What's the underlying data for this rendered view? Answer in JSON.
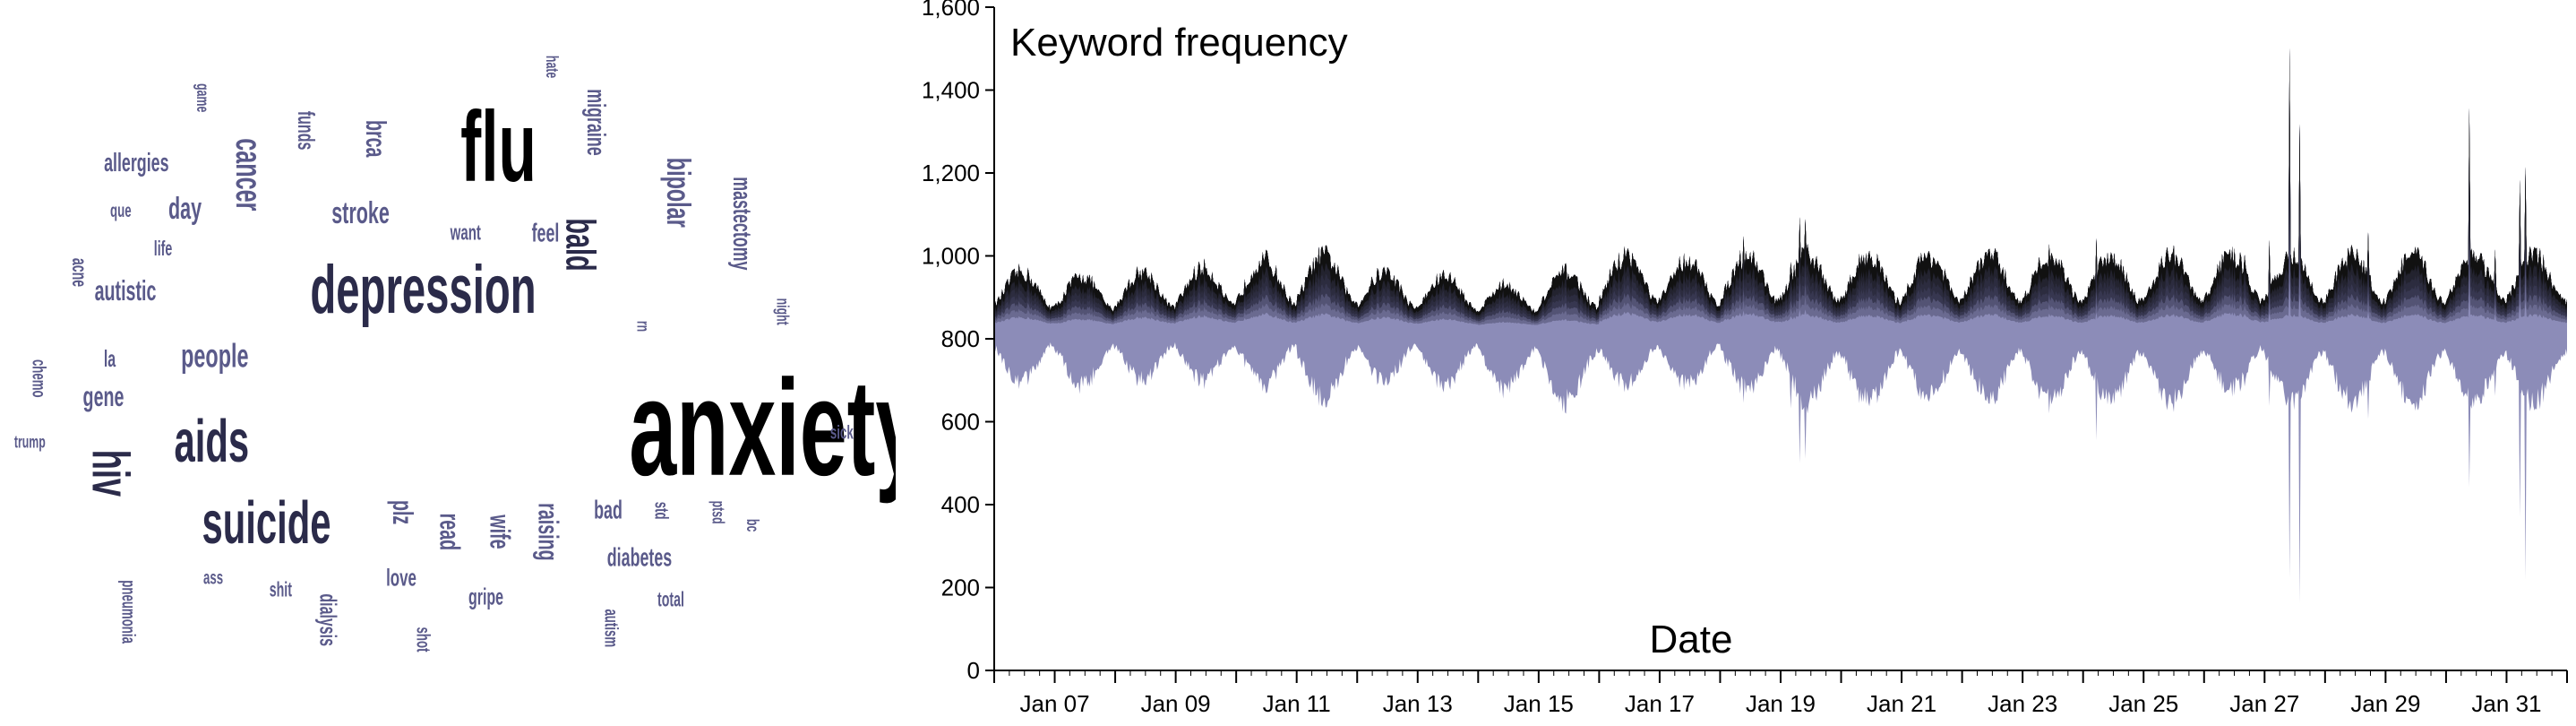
{
  "chart_data": [
    {
      "type": "wordcloud",
      "colors": {
        "dark": "#000000",
        "medium": "#2b2b4a",
        "light": "#5a5a8a"
      },
      "words": [
        {
          "text": "anxiety",
          "weight": 100,
          "rotate": 0,
          "shade": "dark"
        },
        {
          "text": "flu",
          "weight": 72,
          "rotate": 0,
          "shade": "dark"
        },
        {
          "text": "depression",
          "weight": 48,
          "rotate": 0,
          "shade": "medium"
        },
        {
          "text": "suicide",
          "weight": 42,
          "rotate": 0,
          "shade": "medium"
        },
        {
          "text": "aids",
          "weight": 42,
          "rotate": 0,
          "shade": "medium"
        },
        {
          "text": "hiv",
          "weight": 36,
          "rotate": 90,
          "shade": "medium"
        },
        {
          "text": "bald",
          "weight": 28,
          "rotate": 90,
          "shade": "medium"
        },
        {
          "text": "cancer",
          "weight": 24,
          "rotate": 90,
          "shade": "light"
        },
        {
          "text": "people",
          "weight": 22,
          "rotate": 0,
          "shade": "light"
        },
        {
          "text": "bipolar",
          "weight": 22,
          "rotate": 90,
          "shade": "light"
        },
        {
          "text": "stroke",
          "weight": 20,
          "rotate": 0,
          "shade": "light"
        },
        {
          "text": "day",
          "weight": 20,
          "rotate": 0,
          "shade": "light"
        },
        {
          "text": "brca",
          "weight": 18,
          "rotate": 90,
          "shade": "light"
        },
        {
          "text": "raising",
          "weight": 18,
          "rotate": 90,
          "shade": "light"
        },
        {
          "text": "wife",
          "weight": 18,
          "rotate": 90,
          "shade": "light"
        },
        {
          "text": "read",
          "weight": 18,
          "rotate": 90,
          "shade": "light"
        },
        {
          "text": "plz",
          "weight": 18,
          "rotate": 90,
          "shade": "light"
        },
        {
          "text": "gene",
          "weight": 18,
          "rotate": 0,
          "shade": "light"
        },
        {
          "text": "autistic",
          "weight": 18,
          "rotate": 0,
          "shade": "light"
        },
        {
          "text": "mastectomy",
          "weight": 16,
          "rotate": 90,
          "shade": "light"
        },
        {
          "text": "migraine",
          "weight": 16,
          "rotate": 90,
          "shade": "light"
        },
        {
          "text": "allergies",
          "weight": 16,
          "rotate": 0,
          "shade": "light"
        },
        {
          "text": "feel",
          "weight": 16,
          "rotate": 0,
          "shade": "light"
        },
        {
          "text": "bad",
          "weight": 16,
          "rotate": 0,
          "shade": "light"
        },
        {
          "text": "diabetes",
          "weight": 16,
          "rotate": 0,
          "shade": "light"
        },
        {
          "text": "love",
          "weight": 15,
          "rotate": 0,
          "shade": "light"
        },
        {
          "text": "funds",
          "weight": 14,
          "rotate": 90,
          "shade": "light"
        },
        {
          "text": "dialysis",
          "weight": 14,
          "rotate": 90,
          "shade": "light"
        },
        {
          "text": "gripe",
          "weight": 14,
          "rotate": 0,
          "shade": "light"
        },
        {
          "text": "want",
          "weight": 13,
          "rotate": 0,
          "shade": "light"
        },
        {
          "text": "la",
          "weight": 14,
          "rotate": 0,
          "shade": "light"
        },
        {
          "text": "acne",
          "weight": 12,
          "rotate": 90,
          "shade": "light"
        },
        {
          "text": "life",
          "weight": 12,
          "rotate": 0,
          "shade": "light"
        },
        {
          "text": "que",
          "weight": 11,
          "rotate": 0,
          "shade": "light"
        },
        {
          "text": "shit",
          "weight": 12,
          "rotate": 0,
          "shade": "light"
        },
        {
          "text": "ass",
          "weight": 11,
          "rotate": 0,
          "shade": "light"
        },
        {
          "text": "total",
          "weight": 12,
          "rotate": 0,
          "shade": "light"
        },
        {
          "text": "autism",
          "weight": 11,
          "rotate": 90,
          "shade": "light"
        },
        {
          "text": "shot",
          "weight": 11,
          "rotate": 90,
          "shade": "light"
        },
        {
          "text": "std",
          "weight": 11,
          "rotate": 90,
          "shade": "light"
        },
        {
          "text": "ptsd",
          "weight": 10,
          "rotate": 90,
          "shade": "light"
        },
        {
          "text": "bc",
          "weight": 10,
          "rotate": 90,
          "shade": "light"
        },
        {
          "text": "pneumonia",
          "weight": 11,
          "rotate": 90,
          "shade": "light"
        },
        {
          "text": "chemo",
          "weight": 11,
          "rotate": 90,
          "shade": "light"
        },
        {
          "text": "trump",
          "weight": 10,
          "rotate": 0,
          "shade": "light"
        },
        {
          "text": "hate",
          "weight": 10,
          "rotate": 90,
          "shade": "light"
        },
        {
          "text": "game",
          "weight": 10,
          "rotate": 90,
          "shade": "light"
        },
        {
          "text": "night",
          "weight": 10,
          "rotate": 90,
          "shade": "light"
        },
        {
          "text": "rn",
          "weight": 10,
          "rotate": 90,
          "shade": "light"
        },
        {
          "text": "sick",
          "weight": 11,
          "rotate": 0,
          "shade": "light"
        }
      ]
    },
    {
      "type": "area",
      "variant": "streamgraph",
      "title": "Keyword frequency",
      "xlabel": "Date",
      "ylabel": "",
      "x_range": [
        "2017-01-06",
        "2017-02-01"
      ],
      "ylim": [
        0,
        1600
      ],
      "y_ticks": [
        0,
        200,
        400,
        600,
        800,
        1000,
        1200,
        1400,
        1600
      ],
      "y_tick_labels": [
        "0",
        "200",
        "400",
        "600",
        "800",
        "1,000",
        "1,200",
        "1,400",
        "1,600"
      ],
      "x_ticks": [
        "Jan 07",
        "Jan 09",
        "Jan 11",
        "Jan 13",
        "Jan 15",
        "Jan 17",
        "Jan 19",
        "Jan 21",
        "Jan 23",
        "Jan 25",
        "Jan 27",
        "Jan 29",
        "Jan 31"
      ],
      "baseline": 830,
      "grid": false,
      "colors": {
        "top": "#111111",
        "mid": "#3b3b58",
        "bottom": "#8c8cb8"
      },
      "series": [
        {
          "dates": [
            "2017-01-06",
            "2017-01-07",
            "2017-01-08",
            "2017-01-09",
            "2017-01-10",
            "2017-01-11",
            "2017-01-12",
            "2017-01-13",
            "2017-01-14",
            "2017-01-15",
            "2017-01-16",
            "2017-01-17",
            "2017-01-18",
            "2017-01-19",
            "2017-01-20",
            "2017-01-21",
            "2017-01-22",
            "2017-01-23",
            "2017-01-24",
            "2017-01-25",
            "2017-01-26",
            "2017-01-27",
            "2017-01-28",
            "2017-01-29",
            "2017-01-30",
            "2017-01-31"
          ],
          "upper_daily_peak": [
            960,
            950,
            960,
            970,
            990,
            1030,
            960,
            950,
            930,
            960,
            1000,
            990,
            1010,
            1080,
            1050,
            1000,
            1000,
            1020,
            1200,
            1300,
            1010,
            1500,
            1300,
            1160,
            1420,
            1380
          ],
          "lower_daily_trough": [
            700,
            690,
            700,
            700,
            690,
            660,
            700,
            690,
            680,
            650,
            690,
            690,
            680,
            500,
            600,
            660,
            660,
            640,
            360,
            340,
            680,
            70,
            420,
            480,
            300,
            20
          ]
        }
      ]
    }
  ]
}
